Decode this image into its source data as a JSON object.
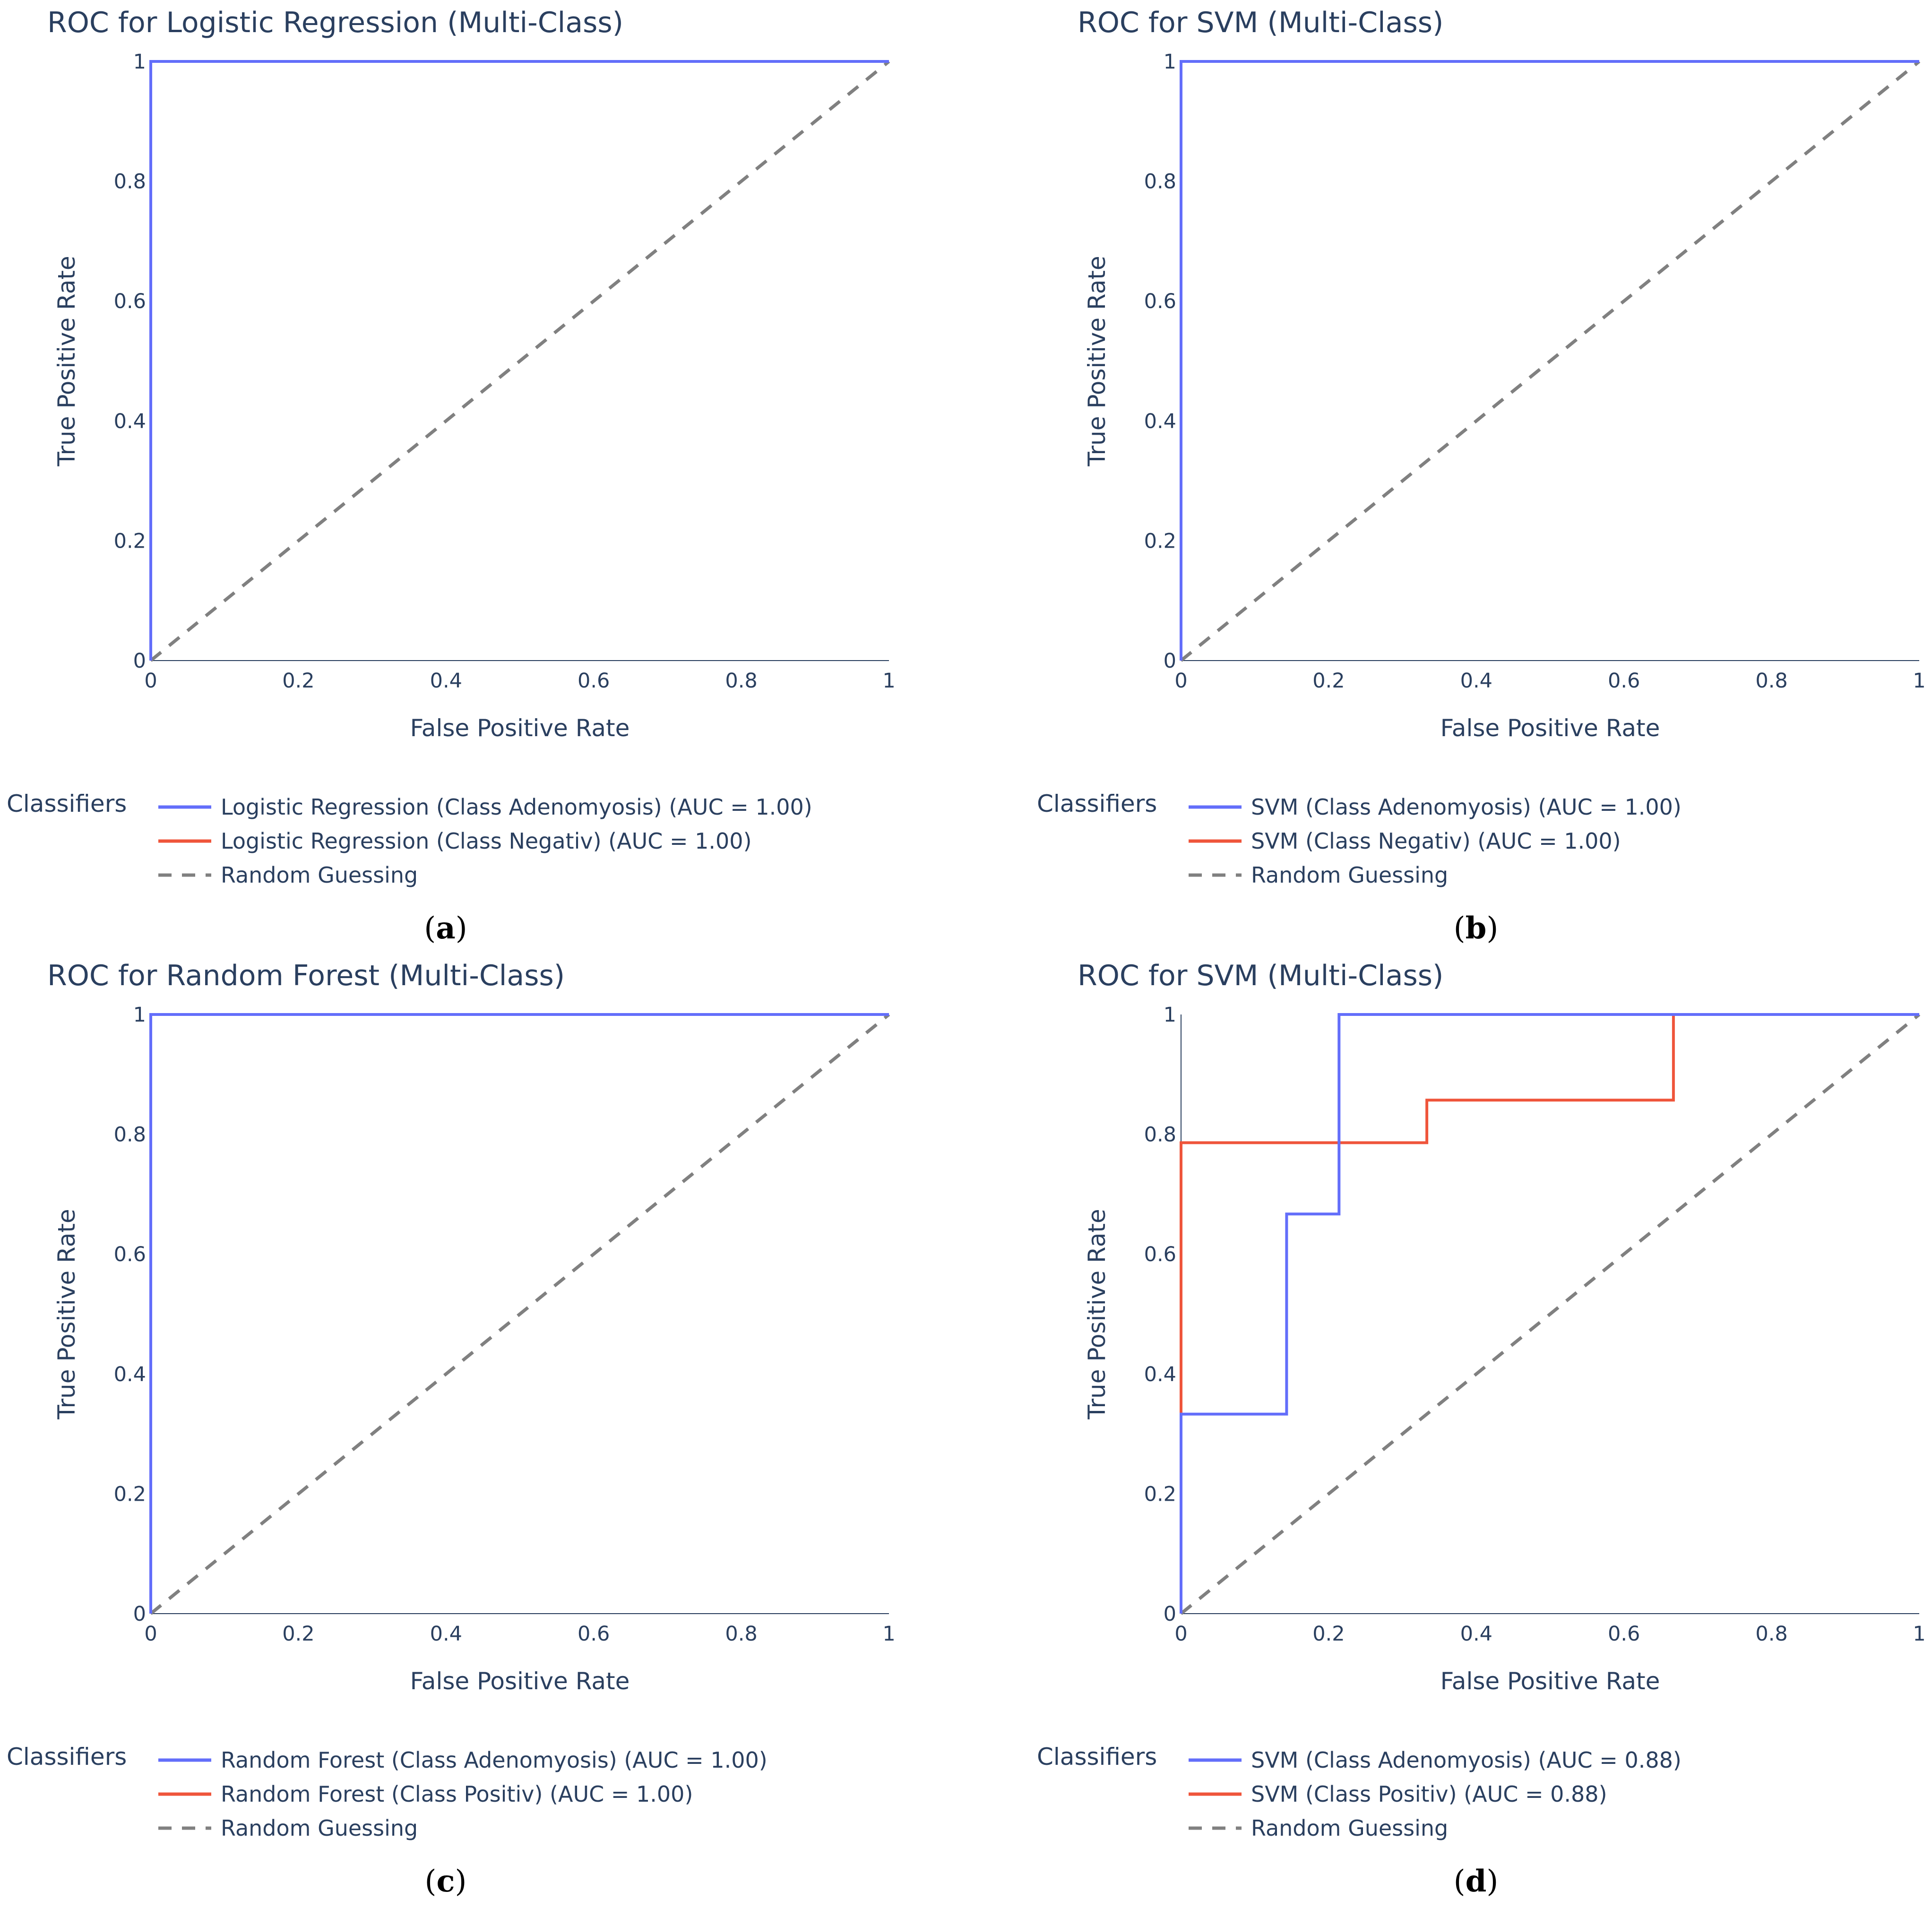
{
  "chart_data": [
    {
      "type": "line",
      "panel": "a",
      "title": "ROC for Logistic Regression (Multi-Class)",
      "xlabel": "False Positive Rate",
      "ylabel": "True Positive Rate",
      "xlim": [
        0,
        1
      ],
      "ylim": [
        0,
        1
      ],
      "xticks": [
        "0",
        "0.2",
        "0.4",
        "0.6",
        "0.8",
        "1"
      ],
      "yticks": [
        "0",
        "0.2",
        "0.4",
        "0.6",
        "0.8",
        "1"
      ],
      "grid": false,
      "legend_title": "Classifiers",
      "legend_position": "bottom",
      "series": [
        {
          "name": "Logistic Regression (Class Adenomyosis) (AUC = 1.00)",
          "color": "#636efa",
          "dash": "solid",
          "x": [
            0,
            0,
            1
          ],
          "y": [
            0,
            1,
            1
          ]
        },
        {
          "name": "Logistic Regression (Class Negativ) (AUC = 1.00)",
          "color": "#ef553b",
          "dash": "solid",
          "x": [
            0,
            0,
            1
          ],
          "y": [
            0,
            1,
            1
          ]
        },
        {
          "name": "Random Guessing",
          "color": "#808080",
          "dash": "dash",
          "x": [
            0,
            1
          ],
          "y": [
            0,
            1
          ]
        }
      ]
    },
    {
      "type": "line",
      "panel": "b",
      "title": "ROC for SVM (Multi-Class)",
      "xlabel": "False Positive Rate",
      "ylabel": "True Positive Rate",
      "xlim": [
        0,
        1
      ],
      "ylim": [
        0,
        1
      ],
      "xticks": [
        "0",
        "0.2",
        "0.4",
        "0.6",
        "0.8",
        "1"
      ],
      "yticks": [
        "0",
        "0.2",
        "0.4",
        "0.6",
        "0.8",
        "1"
      ],
      "grid": false,
      "legend_title": "Classifiers",
      "legend_position": "bottom",
      "series": [
        {
          "name": "SVM (Class Adenomyosis) (AUC = 1.00)",
          "color": "#636efa",
          "dash": "solid",
          "x": [
            0,
            0,
            1
          ],
          "y": [
            0,
            1,
            1
          ]
        },
        {
          "name": "SVM (Class Negativ) (AUC = 1.00)",
          "color": "#ef553b",
          "dash": "solid",
          "x": [
            0,
            0,
            1
          ],
          "y": [
            0,
            1,
            1
          ]
        },
        {
          "name": "Random Guessing",
          "color": "#808080",
          "dash": "dash",
          "x": [
            0,
            1
          ],
          "y": [
            0,
            1
          ]
        }
      ]
    },
    {
      "type": "line",
      "panel": "c",
      "title": "ROC for Random Forest (Multi-Class)",
      "xlabel": "False Positive Rate",
      "ylabel": "True Positive Rate",
      "xlim": [
        0,
        1
      ],
      "ylim": [
        0,
        1
      ],
      "xticks": [
        "0",
        "0.2",
        "0.4",
        "0.6",
        "0.8",
        "1"
      ],
      "yticks": [
        "0",
        "0.2",
        "0.4",
        "0.6",
        "0.8",
        "1"
      ],
      "grid": false,
      "legend_title": "Classifiers",
      "legend_position": "bottom",
      "series": [
        {
          "name": "Random Forest (Class Adenomyosis) (AUC = 1.00)",
          "color": "#636efa",
          "dash": "solid",
          "x": [
            0,
            0,
            1
          ],
          "y": [
            0,
            1,
            1
          ]
        },
        {
          "name": "Random Forest (Class Positiv) (AUC = 1.00)",
          "color": "#ef553b",
          "dash": "solid",
          "x": [
            0,
            0,
            1
          ],
          "y": [
            0,
            1,
            1
          ]
        },
        {
          "name": "Random Guessing",
          "color": "#808080",
          "dash": "dash",
          "x": [
            0,
            1
          ],
          "y": [
            0,
            1
          ]
        }
      ]
    },
    {
      "type": "line",
      "panel": "d",
      "title": "ROC for SVM (Multi-Class)",
      "xlabel": "False Positive Rate",
      "ylabel": "True Positive Rate",
      "xlim": [
        0,
        1
      ],
      "ylim": [
        0,
        1
      ],
      "xticks": [
        "0",
        "0.2",
        "0.4",
        "0.6",
        "0.8",
        "1"
      ],
      "yticks": [
        "0",
        "0.2",
        "0.4",
        "0.6",
        "0.8",
        "1"
      ],
      "grid": false,
      "legend_title": "Classifiers",
      "legend_position": "bottom",
      "series": [
        {
          "name": "SVM (Class Adenomyosis) (AUC = 0.88)",
          "color": "#636efa",
          "dash": "solid",
          "x": [
            0,
            0,
            0.143,
            0.143,
            0.214,
            0.214,
            1
          ],
          "y": [
            0,
            0.333,
            0.333,
            0.667,
            0.667,
            1,
            1
          ]
        },
        {
          "name": "SVM (Class Positiv) (AUC = 0.88)",
          "color": "#ef553b",
          "dash": "solid",
          "x": [
            0,
            0,
            0.333,
            0.333,
            0.667,
            0.667,
            1
          ],
          "y": [
            0,
            0.786,
            0.786,
            0.857,
            0.857,
            1,
            1
          ]
        },
        {
          "name": "Random Guessing",
          "color": "#808080",
          "dash": "dash",
          "x": [
            0,
            1
          ],
          "y": [
            0,
            1
          ]
        }
      ]
    }
  ]
}
